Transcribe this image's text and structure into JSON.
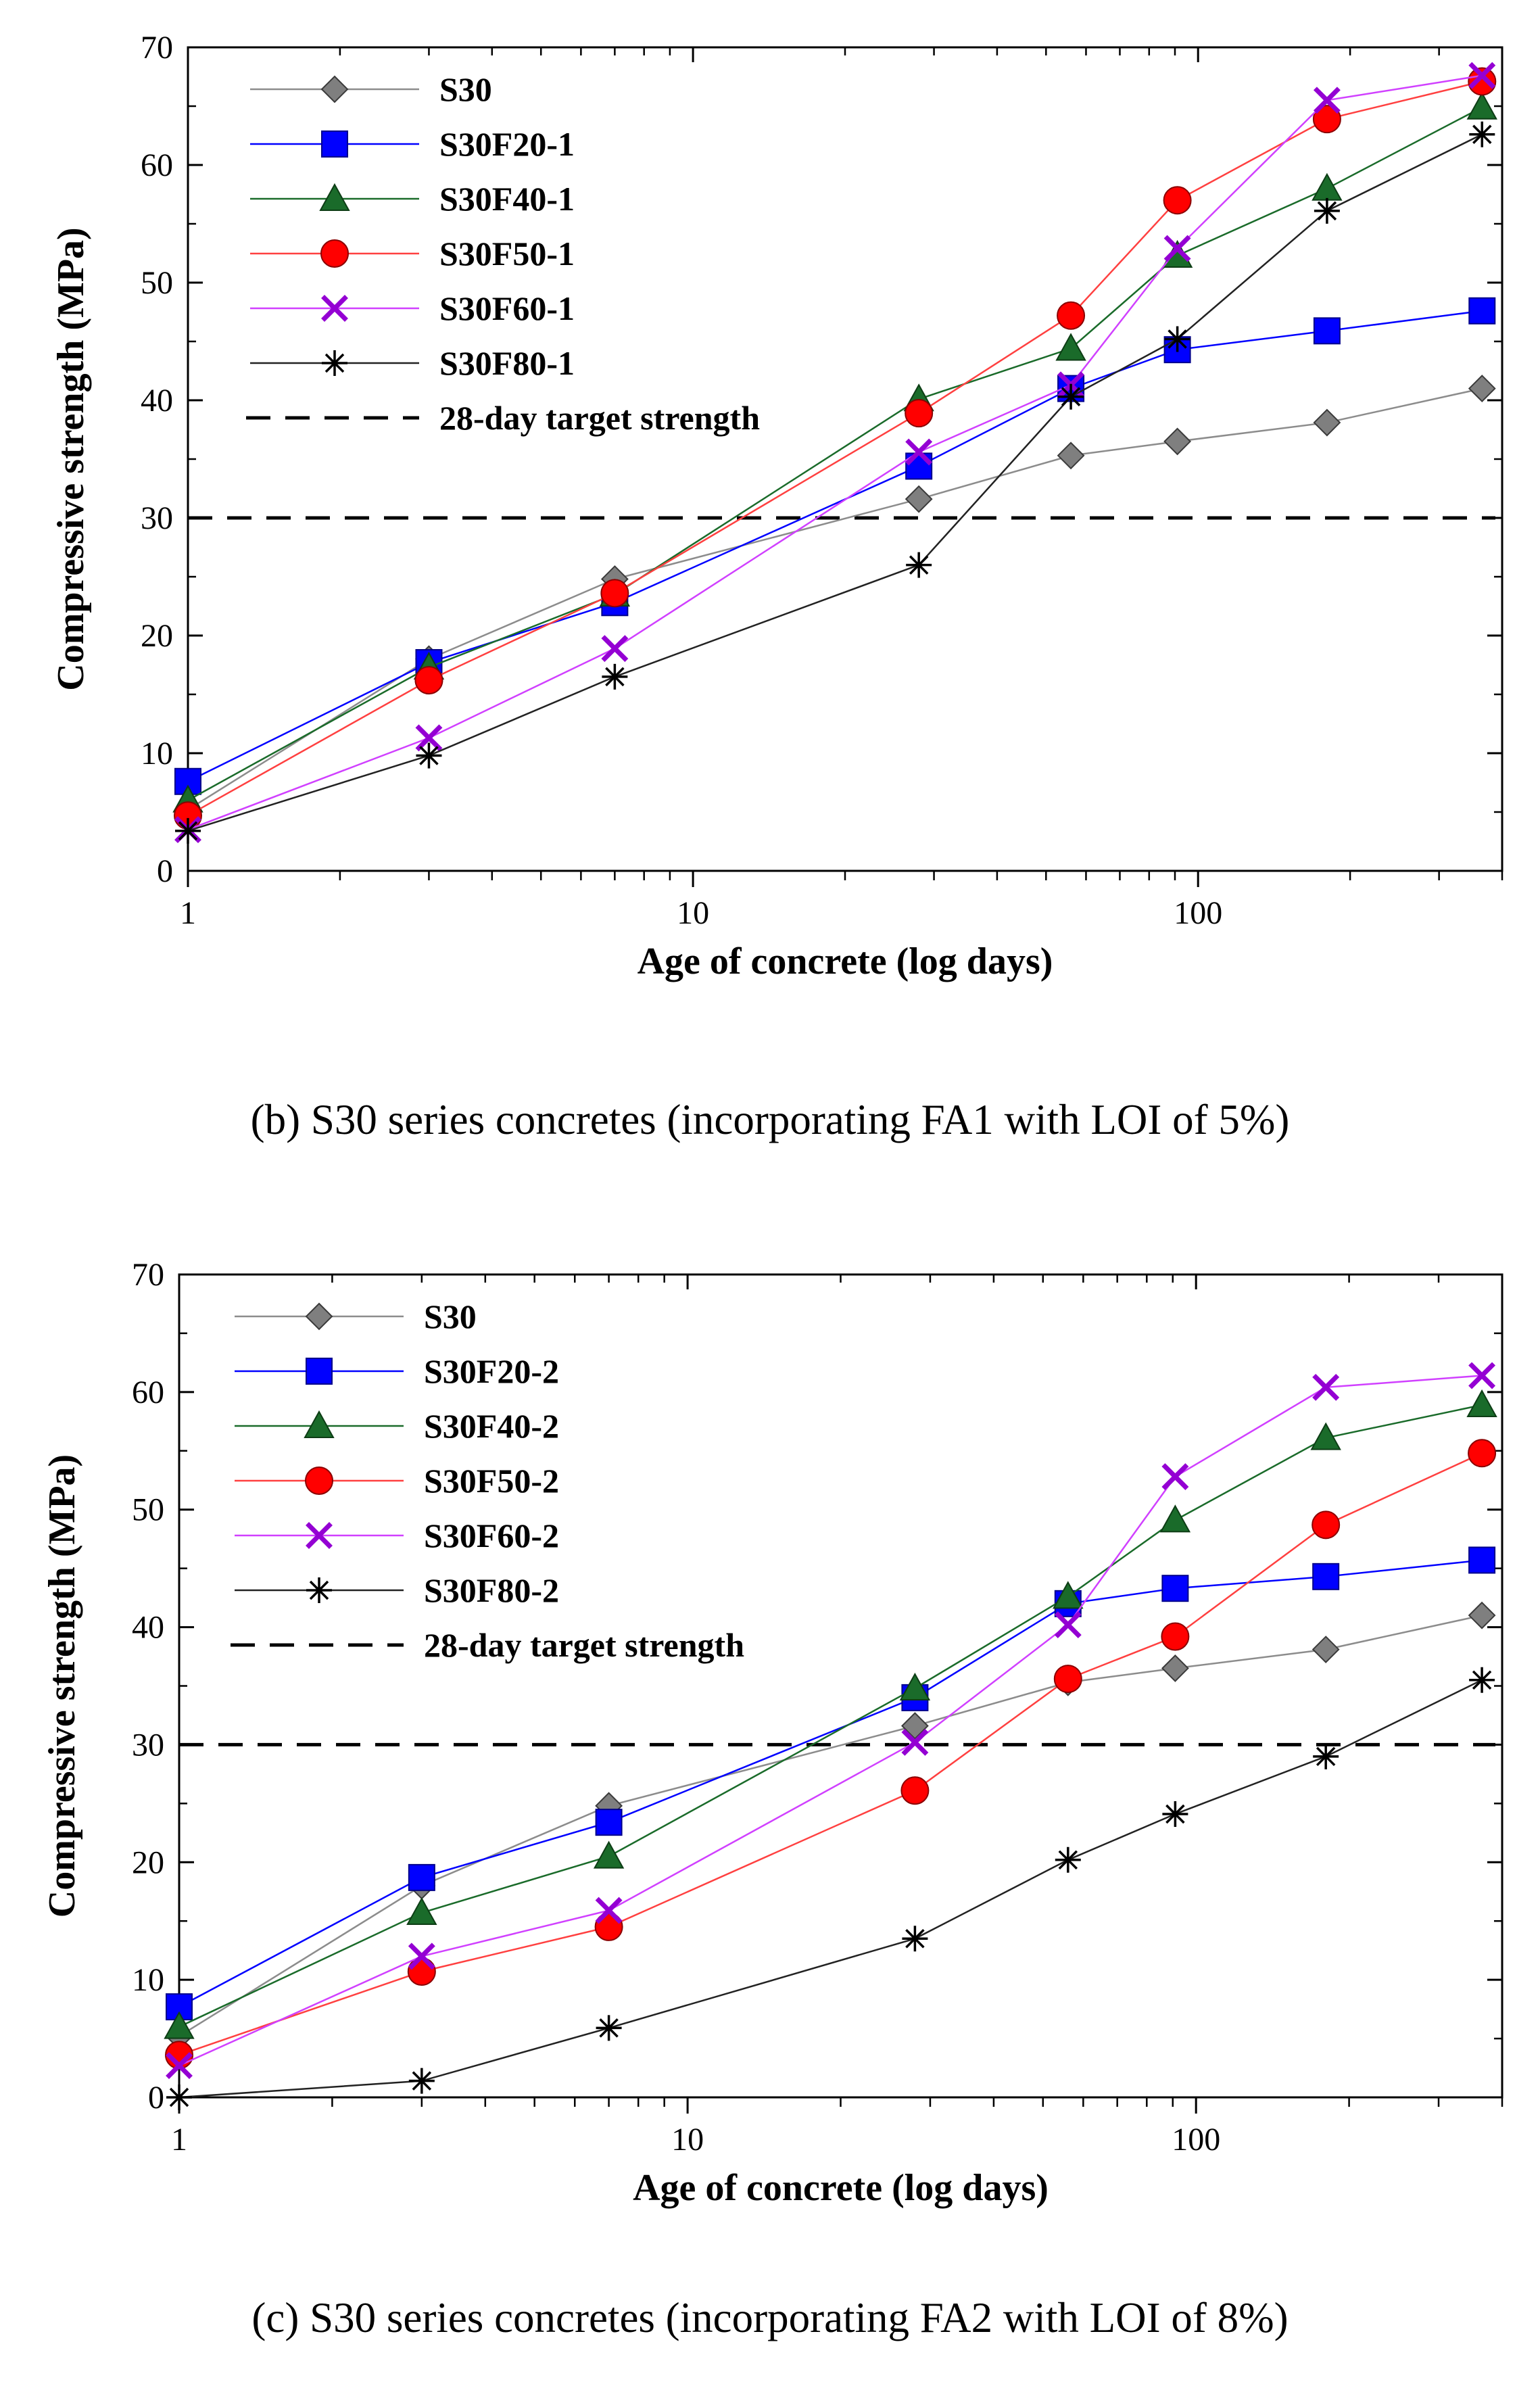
{
  "chart_data": [
    {
      "type": "line",
      "caption": "(b) S30 series concretes (incorporating FA1 with LOI of 5%)",
      "xlabel": "Age of concrete (log days)",
      "ylabel": "Compressive strength (MPa)",
      "xscale": "log",
      "xlim": [
        1,
        400
      ],
      "ylim": [
        0,
        70
      ],
      "xticks": [
        {
          "value": 1,
          "label": "1"
        },
        {
          "value": 10,
          "label": "10"
        },
        {
          "value": 100,
          "label": "100"
        }
      ],
      "yticks": [
        0,
        10,
        20,
        30,
        40,
        50,
        60,
        70
      ],
      "legend_position": "top-left",
      "x": [
        1,
        3,
        7,
        28,
        56,
        91,
        180,
        365
      ],
      "series": [
        {
          "name": "S30",
          "marker": "diamond",
          "color": "#7f7f7f",
          "line_color": "#8c8c8c",
          "values": [
            5.2,
            18.0,
            24.8,
            31.6,
            35.3,
            36.5,
            38.1,
            41.0
          ]
        },
        {
          "name": "S30F20-1",
          "marker": "square",
          "color": "#0000ff",
          "line_color": "#0000ff",
          "values": [
            7.6,
            17.7,
            22.8,
            34.4,
            41.0,
            44.3,
            45.9,
            47.6
          ]
        },
        {
          "name": "S30F40-1",
          "marker": "triangle",
          "color": "#1a6b2a",
          "line_color": "#1a6b2a",
          "values": [
            6.0,
            17.3,
            23.5,
            40.1,
            44.4,
            52.3,
            58.0,
            64.9
          ]
        },
        {
          "name": "S30F50-1",
          "marker": "circle",
          "color": "#ff0000",
          "line_color": "#ff4040",
          "values": [
            4.7,
            16.2,
            23.6,
            38.9,
            47.2,
            57.0,
            63.9,
            67.1
          ]
        },
        {
          "name": "S30F60-1",
          "marker": "x",
          "color": "#9400d3",
          "line_color": "#d040ff",
          "values": [
            3.5,
            11.3,
            18.9,
            35.6,
            41.3,
            52.9,
            65.5,
            67.6
          ]
        },
        {
          "name": "S30F80-1",
          "marker": "asterisk",
          "color": "#000000",
          "line_color": "#222222",
          "values": [
            3.4,
            9.8,
            16.5,
            26.0,
            40.3,
            45.2,
            56.1,
            62.6
          ]
        }
      ],
      "reference_line": {
        "name": "28-day target strength",
        "y": 30
      }
    },
    {
      "type": "line",
      "caption": "(c) S30 series concretes (incorporating FA2 with LOI of 8%)",
      "xlabel": "Age of concrete (log days)",
      "ylabel": "Compressive strength (MPa)",
      "xscale": "log",
      "xlim": [
        1,
        400
      ],
      "ylim": [
        0,
        70
      ],
      "xticks": [
        {
          "value": 1,
          "label": "1"
        },
        {
          "value": 10,
          "label": "10"
        },
        {
          "value": 100,
          "label": "100"
        }
      ],
      "yticks": [
        0,
        10,
        20,
        30,
        40,
        50,
        60,
        70
      ],
      "legend_position": "top-left",
      "x": [
        1,
        3,
        7,
        28,
        56,
        91,
        180,
        365
      ],
      "series": [
        {
          "name": "S30",
          "marker": "diamond",
          "color": "#7f7f7f",
          "line_color": "#8c8c8c",
          "values": [
            5.2,
            18.0,
            24.8,
            31.6,
            35.3,
            36.5,
            38.1,
            41.0
          ]
        },
        {
          "name": "S30F20-2",
          "marker": "square",
          "color": "#0000ff",
          "line_color": "#0000ff",
          "values": [
            7.7,
            18.7,
            23.4,
            34.0,
            42.0,
            43.3,
            44.3,
            45.7
          ]
        },
        {
          "name": "S30F40-2",
          "marker": "triangle",
          "color": "#1a6b2a",
          "line_color": "#1a6b2a",
          "values": [
            6.0,
            15.7,
            20.5,
            34.8,
            42.6,
            49.1,
            56.1,
            58.9
          ]
        },
        {
          "name": "S30F50-2",
          "marker": "circle",
          "color": "#ff0000",
          "line_color": "#ff4040",
          "values": [
            3.6,
            10.7,
            14.5,
            26.1,
            35.6,
            39.2,
            48.7,
            54.8
          ]
        },
        {
          "name": "S30F60-2",
          "marker": "x",
          "color": "#9400d3",
          "line_color": "#d040ff",
          "values": [
            2.7,
            12.0,
            15.9,
            30.2,
            40.2,
            52.8,
            60.4,
            61.4
          ]
        },
        {
          "name": "S30F80-2",
          "marker": "asterisk",
          "color": "#000000",
          "line_color": "#222222",
          "values": [
            0.0,
            1.4,
            5.9,
            13.5,
            20.2,
            24.1,
            29.0,
            35.5
          ]
        }
      ],
      "reference_line": {
        "name": "28-day target strength",
        "y": 30
      }
    }
  ]
}
